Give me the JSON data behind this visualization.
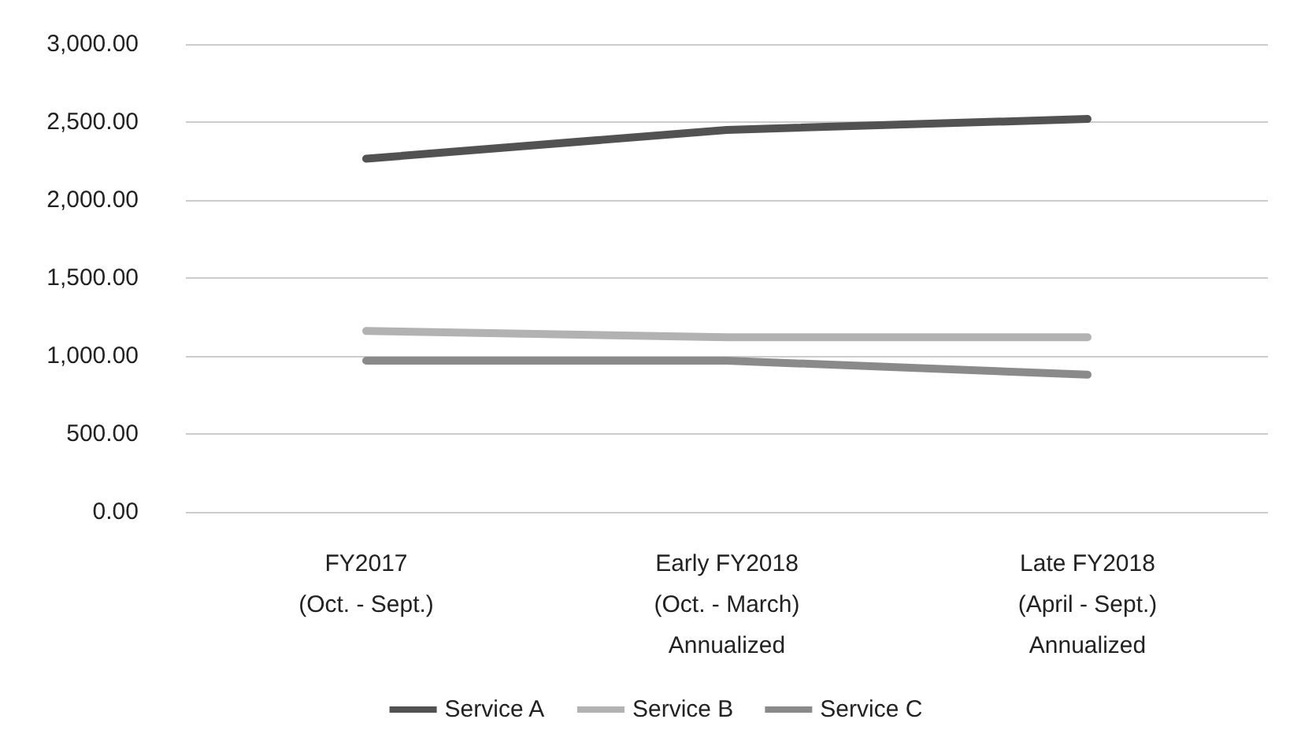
{
  "chart_data": {
    "type": "line",
    "categories": [
      "FY2017\n(Oct. - Sept.)",
      "Early FY2018\n(Oct. - March)\nAnnualized",
      "Late FY2018\n(April - Sept.)\nAnnualized"
    ],
    "series": [
      {
        "name": "Service A",
        "color": "#525252",
        "values": [
          2265,
          2450,
          2520
        ]
      },
      {
        "name": "Service B",
        "color": "#b2b2b2",
        "values": [
          1160,
          1120,
          1120
        ]
      },
      {
        "name": "Service C",
        "color": "#8a8a8a",
        "values": [
          970,
          970,
          880
        ]
      }
    ],
    "ylim": [
      0,
      3000
    ],
    "yticks": [
      {
        "value": 0,
        "label": "0.00"
      },
      {
        "value": 500,
        "label": "500.00"
      },
      {
        "value": 1000,
        "label": "1,000.00"
      },
      {
        "value": 1500,
        "label": "1,500.00"
      },
      {
        "value": 2000,
        "label": "2,000.00"
      },
      {
        "value": 2500,
        "label": "2,500.00"
      },
      {
        "value": 3000,
        "label": "3,000.00"
      }
    ],
    "grid": "y",
    "legend": "bottom",
    "marker": "none",
    "line_style": "solid"
  }
}
